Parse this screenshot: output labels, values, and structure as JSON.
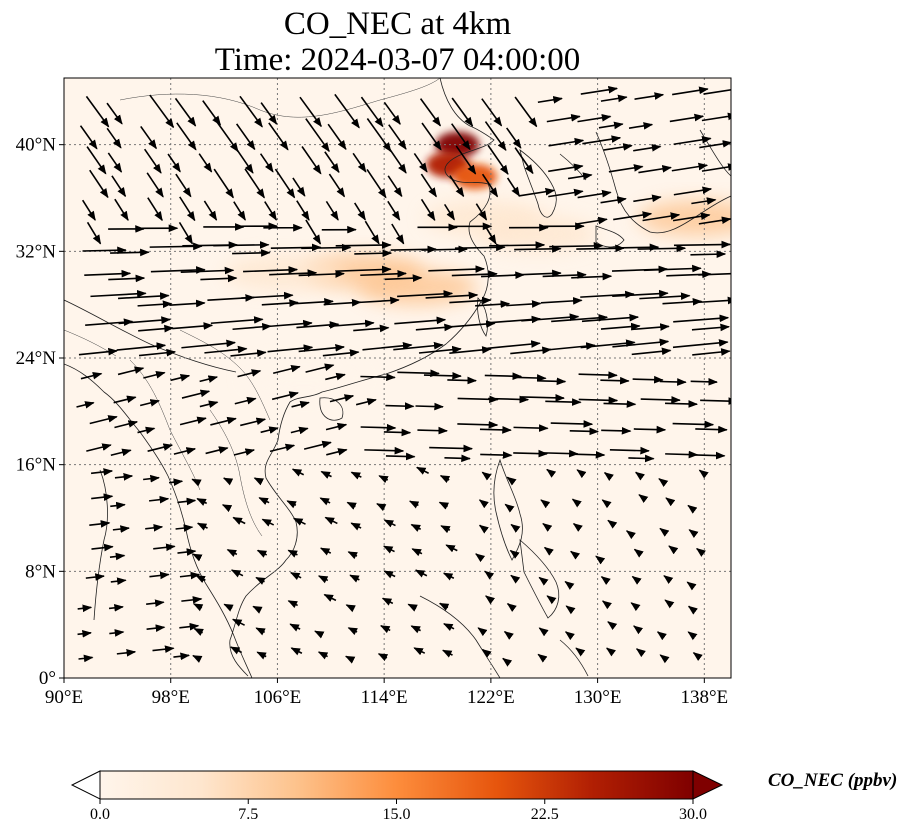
{
  "title": {
    "line1": "CO_NEC at 4km",
    "line2": "Time: 2024-03-07 04:00:00"
  },
  "map": {
    "lon_range": [
      90,
      140
    ],
    "lat_range": [
      0,
      45
    ],
    "lon_ticks": [
      {
        "value": 90,
        "label": "90°E"
      },
      {
        "value": 98,
        "label": "98°E"
      },
      {
        "value": 106,
        "label": "106°E"
      },
      {
        "value": 114,
        "label": "114°E"
      },
      {
        "value": 122,
        "label": "122°E"
      },
      {
        "value": 130,
        "label": "130°E"
      },
      {
        "value": 138,
        "label": "138°E"
      }
    ],
    "lat_ticks": [
      {
        "value": 0,
        "label": "0°"
      },
      {
        "value": 8,
        "label": "8°N"
      },
      {
        "value": 16,
        "label": "16°N"
      },
      {
        "value": 24,
        "label": "24°N"
      },
      {
        "value": 32,
        "label": "32°N"
      },
      {
        "value": 40,
        "label": "40°N"
      }
    ],
    "gridlines": true,
    "background_color": "#fff5eb",
    "concentration_plumes": [
      {
        "lon": 119.5,
        "lat": 40.0,
        "value": 30
      },
      {
        "lon": 118.8,
        "lat": 38.5,
        "value": 27
      },
      {
        "lon": 120.8,
        "lat": 37.6,
        "value": 22
      },
      {
        "lon": 112.5,
        "lat": 30.5,
        "value": 8
      },
      {
        "lon": 116.5,
        "lat": 29.3,
        "value": 9
      },
      {
        "lon": 106.5,
        "lat": 30.4,
        "value": 5
      },
      {
        "lon": 121.5,
        "lat": 34.5,
        "value": 6
      },
      {
        "lon": 137.5,
        "lat": 34.5,
        "value": 10
      },
      {
        "lon": 125.5,
        "lat": 33.3,
        "value": 4
      },
      {
        "lon": 108.0,
        "lat": 22.5,
        "value": 2
      }
    ]
  },
  "colorbar": {
    "min": 0,
    "max": 30,
    "extend": "both",
    "ticks": [
      "0.0",
      "7.5",
      "15.0",
      "22.5",
      "30.0"
    ],
    "label": "CO_NEC (ppbv)",
    "colors": [
      "#fff5eb",
      "#fdd9b4",
      "#fdab67",
      "#f3701b",
      "#d94801",
      "#a63603",
      "#7f2704"
    ]
  }
}
